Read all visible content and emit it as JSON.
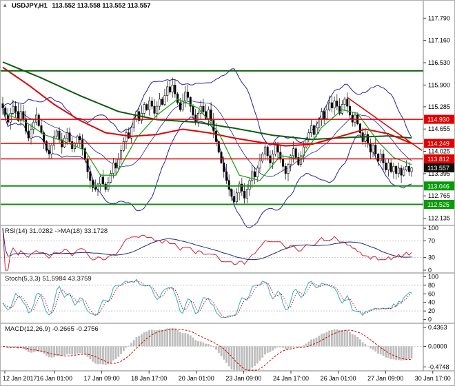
{
  "window": {
    "symbol_timeframe": "USDJPY,H1",
    "ohlc_values": "113.552 113.558 113.552 113.557"
  },
  "colors": {
    "bull_candle": "#ffffff",
    "bear_candle": "#000000",
    "candle_outline": "#000000",
    "bollinger": "#2020a0",
    "ma_red": "#e00000",
    "ma_green": "#1fa11f",
    "ma_dark_green": "#0a5c0a",
    "resistance_line": "#e00000",
    "support_line": "#0f8f0f",
    "rsi_line": "#d02030",
    "rsi_ma_line": "#1a2a7a",
    "stoch_main": "#2ab0c5",
    "stoch_signal": "#d00000",
    "macd_histogram": "#bdbdbd",
    "macd_signal": "#d00000",
    "axis_text": "#000000",
    "separator": "#808080",
    "level_line": "#c8c8c8"
  },
  "main_chart": {
    "y_axis_labels": [
      "117.790",
      "117.160",
      "116.530",
      "115.900",
      "115.285",
      "114.655",
      "114.025",
      "113.395",
      "112.765",
      "112.135"
    ],
    "price_boxes": [
      {
        "label": "114.930",
        "value": 114.93,
        "bg": "#e00000"
      },
      {
        "label": "114.249",
        "value": 114.249,
        "bg": "#e00000"
      },
      {
        "label": "113.812",
        "value": 113.812,
        "bg": "#e00000"
      },
      {
        "label": "113.557",
        "value": 113.557,
        "bg": "#101010"
      },
      {
        "label": "113.046",
        "value": 113.046,
        "bg": "#0a9a0a"
      },
      {
        "label": "112.525",
        "value": 112.525,
        "bg": "#0a9a0a"
      }
    ]
  },
  "chart_data": {
    "type": "candlestick",
    "symbol": "USDJPY",
    "timeframe": "H1",
    "x_labels": [
      "12 Jan 2017",
      "16 Jan 01:00",
      "17 Jan 09:00",
      "18 Jan 17:00",
      "20 Jan 01:00",
      "23 Jan 09:00",
      "24 Jan 17:00",
      "26 Jan 01:00",
      "27 Jan 09:00",
      "30 Jan 17:00"
    ],
    "price_range": [
      112.135,
      117.79
    ],
    "close": [
      115.25,
      115.05,
      114.85,
      115.1,
      115.3,
      115.15,
      114.9,
      115.15,
      114.95,
      114.6,
      114.4,
      114.65,
      114.85,
      115.05,
      114.75,
      114.55,
      114.3,
      114.05,
      113.95,
      114.2,
      114.45,
      114.6,
      114.35,
      114.15,
      114.4,
      114.55,
      114.3,
      114.1,
      114.25,
      114.45,
      114.35,
      114.1,
      113.8,
      113.45,
      113.2,
      113.0,
      112.95,
      113.1,
      113.3,
      113.1,
      112.95,
      113.15,
      113.4,
      113.7,
      113.55,
      113.8,
      114.05,
      114.3,
      114.55,
      114.4,
      114.7,
      114.95,
      115.15,
      114.9,
      115.1,
      115.35,
      115.2,
      115.45,
      115.3,
      115.1,
      115.3,
      115.5,
      115.35,
      115.6,
      115.85,
      115.7,
      115.9,
      115.65,
      115.4,
      115.2,
      115.45,
      115.7,
      115.55,
      115.3,
      115.05,
      114.85,
      115.1,
      115.3,
      115.15,
      114.95,
      115.2,
      114.9,
      114.6,
      114.3,
      114.0,
      113.7,
      113.45,
      113.2,
      112.95,
      112.75,
      112.6,
      112.85,
      113.1,
      112.9,
      112.7,
      112.95,
      113.2,
      113.45,
      113.3,
      113.55,
      113.75,
      113.95,
      114.15,
      113.9,
      113.7,
      113.95,
      114.2,
      114.0,
      113.8,
      113.6,
      113.4,
      113.65,
      113.9,
      114.1,
      113.85,
      113.65,
      113.9,
      114.15,
      114.35,
      114.55,
      114.75,
      114.5,
      114.7,
      114.95,
      115.15,
      114.95,
      115.2,
      115.4,
      115.25,
      115.45,
      115.3,
      115.1,
      115.35,
      115.5,
      115.3,
      115.05,
      114.85,
      115.05,
      114.8,
      114.55,
      114.3,
      114.5,
      114.25,
      114.0,
      114.2,
      113.95,
      113.75,
      113.95,
      113.7,
      113.5,
      113.7,
      113.45,
      113.6,
      113.4,
      113.55,
      113.35,
      113.5,
      113.6,
      113.45,
      113.557
    ],
    "overlays": {
      "bollinger": {
        "period": 20,
        "deviation": 2
      },
      "ma_red": {
        "points": [
          [
            0,
            116.4
          ],
          [
            10,
            115.9
          ],
          [
            20,
            115.35
          ],
          [
            30,
            114.9
          ],
          [
            40,
            114.55
          ],
          [
            50,
            114.45
          ],
          [
            60,
            114.5
          ],
          [
            70,
            114.65
          ],
          [
            80,
            114.55
          ],
          [
            90,
            114.4
          ],
          [
            100,
            114.28
          ],
          [
            110,
            114.18
          ],
          [
            120,
            114.22
          ],
          [
            130,
            114.42
          ],
          [
            141,
            114.65
          ],
          [
            150,
            114.52
          ],
          [
            159,
            114.25
          ]
        ]
      },
      "ma_dark_green": {
        "points": [
          [
            0,
            116.55
          ],
          [
            15,
            116.1
          ],
          [
            30,
            115.6
          ],
          [
            45,
            115.15
          ],
          [
            60,
            114.92
          ],
          [
            75,
            114.85
          ],
          [
            90,
            114.68
          ],
          [
            105,
            114.48
          ],
          [
            120,
            114.36
          ],
          [
            135,
            114.42
          ],
          [
            150,
            114.46
          ],
          [
            159,
            114.4
          ]
        ]
      },
      "ma_green": {
        "points": [
          [
            0,
            115.1
          ],
          [
            8,
            114.9
          ],
          [
            16,
            114.5
          ],
          [
            24,
            114.3
          ],
          [
            32,
            114.05
          ],
          [
            38,
            113.35
          ],
          [
            44,
            113.35
          ],
          [
            52,
            114.4
          ],
          [
            60,
            115.05
          ],
          [
            68,
            115.5
          ],
          [
            76,
            115.25
          ],
          [
            84,
            114.55
          ],
          [
            92,
            113.35
          ],
          [
            100,
            113.2
          ],
          [
            108,
            113.9
          ],
          [
            116,
            113.8
          ],
          [
            124,
            114.7
          ],
          [
            132,
            115.2
          ],
          [
            138,
            115.1
          ],
          [
            146,
            114.3
          ],
          [
            152,
            113.85
          ],
          [
            159,
            113.65
          ]
        ]
      },
      "trendline": {
        "points": [
          [
            134,
            115.55
          ],
          [
            164,
            114.05
          ]
        ]
      },
      "hlines": [
        {
          "price": 116.3,
          "type": "dark_green",
          "width": 2
        },
        {
          "price": 114.93,
          "type": "resistance",
          "width": 1.5
        },
        {
          "price": 114.249,
          "type": "resistance",
          "width": 1.5
        },
        {
          "price": 113.812,
          "type": "resistance",
          "width": 1.5
        },
        {
          "price": 113.046,
          "type": "support",
          "width": 2
        },
        {
          "price": 112.525,
          "type": "support",
          "width": 2
        }
      ]
    },
    "panels": [
      {
        "id": "rsi",
        "label": "RSI(14) 31.0282 ->MA(18) 33.1728",
        "period": 14,
        "ma_period": 18,
        "value": "31.0282",
        "ma_value": "33.1728",
        "levels": [
          30,
          70
        ],
        "axis_labels": [
          "100",
          "70",
          "30",
          "0"
        ]
      },
      {
        "id": "stoch",
        "label": "Stoch(5,3,3) 51.5984 43.3759",
        "value": "51.5984",
        "signal_value": "43.3759",
        "levels": [
          20,
          80
        ],
        "axis_labels": [
          "100",
          "80",
          "60",
          "40",
          "20",
          "0"
        ]
      },
      {
        "id": "macd",
        "label": "MACD(12,26,9) -0.2665 -0.2756",
        "value": "-0.2665",
        "signal_value": "-0.2756",
        "levels": [
          0
        ],
        "axis_labels": [
          "0.4363",
          "0.0000",
          "-0.4748"
        ]
      }
    ]
  }
}
